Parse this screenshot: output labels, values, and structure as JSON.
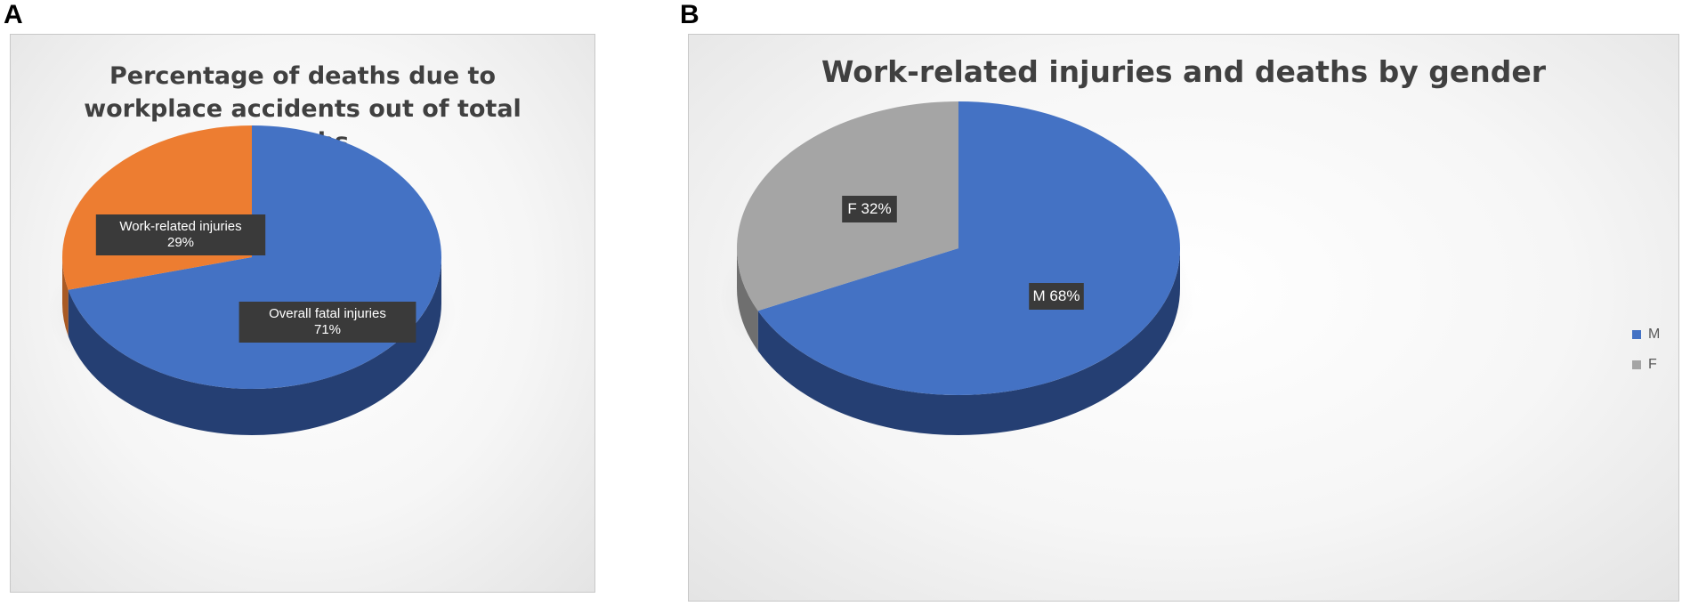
{
  "panels": {
    "a_letter": "A",
    "b_letter": "B"
  },
  "chart_data": [
    {
      "type": "pie",
      "title": "Percentage of deaths due to workplace accidents out of total deaths",
      "title_lines": [
        "Percentage of deaths due to",
        "workplace accidents out of total",
        "deaths"
      ],
      "slices": [
        {
          "label": "Overall fatal injuries",
          "value": 71,
          "percent_label": "71%",
          "color": "#4472c4",
          "side_color": "#253f73"
        },
        {
          "label": "Work-related injuries",
          "value": 29,
          "percent_label": "29%",
          "color": "#ed7d31",
          "side_color": "#a95a24"
        }
      ],
      "legend": null
    },
    {
      "type": "pie",
      "title": "Work-related injuries and deaths by gender",
      "slices": [
        {
          "label": "M",
          "value": 68,
          "percent_label": "M 68%",
          "color": "#4472c4",
          "side_color": "#253f73"
        },
        {
          "label": "F",
          "value": 32,
          "percent_label": "F 32%",
          "color": "#a5a5a5",
          "side_color": "#6f6f6f"
        }
      ],
      "legend": {
        "position": "right",
        "entries": [
          "M",
          "F"
        ]
      }
    }
  ]
}
